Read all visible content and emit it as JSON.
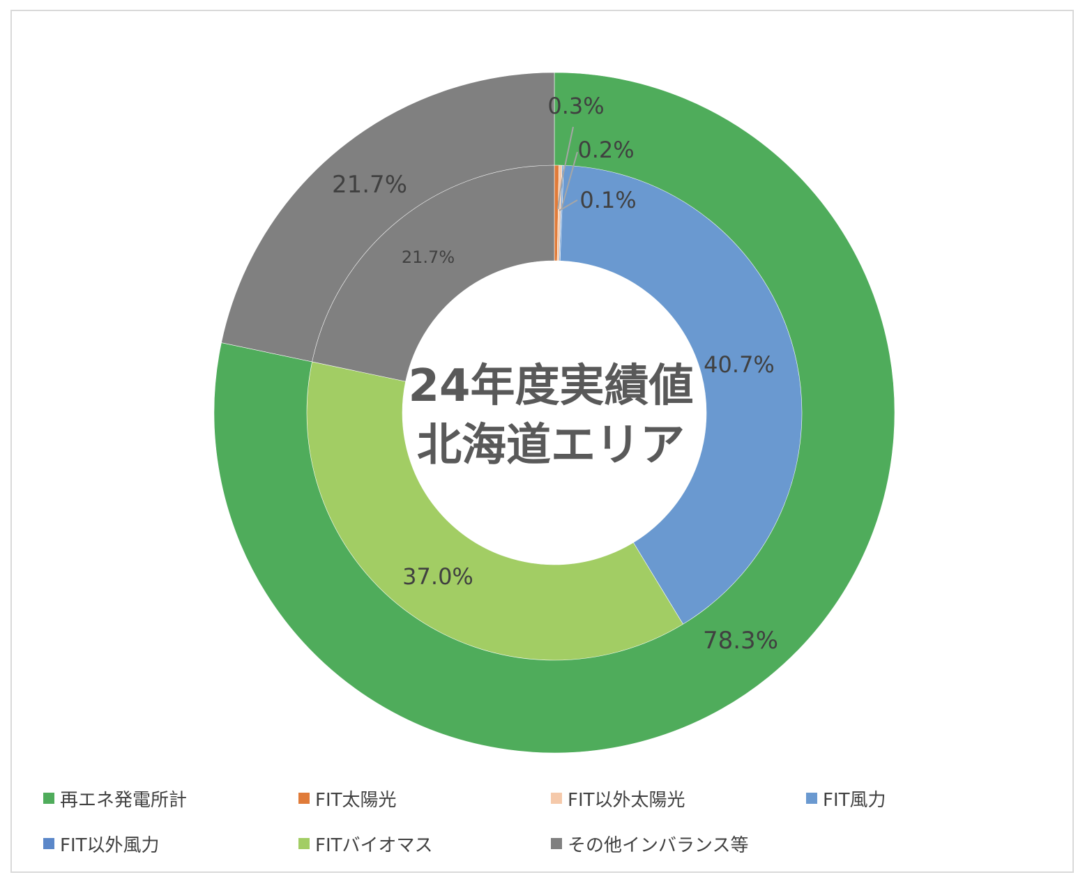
{
  "chart_data": {
    "type": "donut",
    "center_title_line1": "24年度実績値",
    "center_title_line2": "北海道エリア",
    "outer_ring": {
      "slices": [
        {
          "name": "再エネ発電所計",
          "value": 78.3,
          "label": "78.3%",
          "color": "#4FAC5B"
        },
        {
          "name": "その他インバランス等",
          "value": 21.7,
          "label": "21.7%",
          "color": "#808080"
        }
      ]
    },
    "inner_ring": {
      "slices": [
        {
          "name": "FIT太陽光",
          "value": 0.3,
          "label": "0.3%",
          "color": "#E07B39"
        },
        {
          "name": "FIT以外太陽光",
          "value": 0.2,
          "label": "0.2%",
          "color": "#F5C9AA"
        },
        {
          "name": "FIT風力",
          "value": 0.1,
          "label": "0.1%",
          "color": "#6A99D0"
        },
        {
          "name": "FIT以外風力",
          "value": 40.7,
          "label": "40.7%",
          "color": "#6A99D0"
        },
        {
          "name": "FITバイオマス",
          "value": 37.0,
          "label": "37.0%",
          "color": "#A2CD64"
        },
        {
          "name": "その他インバランス等",
          "value": 21.7,
          "label": "21.7%",
          "color": "#808080"
        }
      ]
    },
    "legend": [
      {
        "label": "再エネ発電所計",
        "color": "#4FAC5B"
      },
      {
        "label": "FIT太陽光",
        "color": "#E07B39"
      },
      {
        "label": "FIT以外太陽光",
        "color": "#F5C9AA"
      },
      {
        "label": "FIT風力",
        "color": "#6A99D0"
      },
      {
        "label": "FIT以外風力",
        "color": "#5B87C9"
      },
      {
        "label": "FITバイオマス",
        "color": "#A2CD64"
      },
      {
        "label": "その他インバランス等",
        "color": "#808080"
      }
    ],
    "legend_position": "bottom"
  }
}
